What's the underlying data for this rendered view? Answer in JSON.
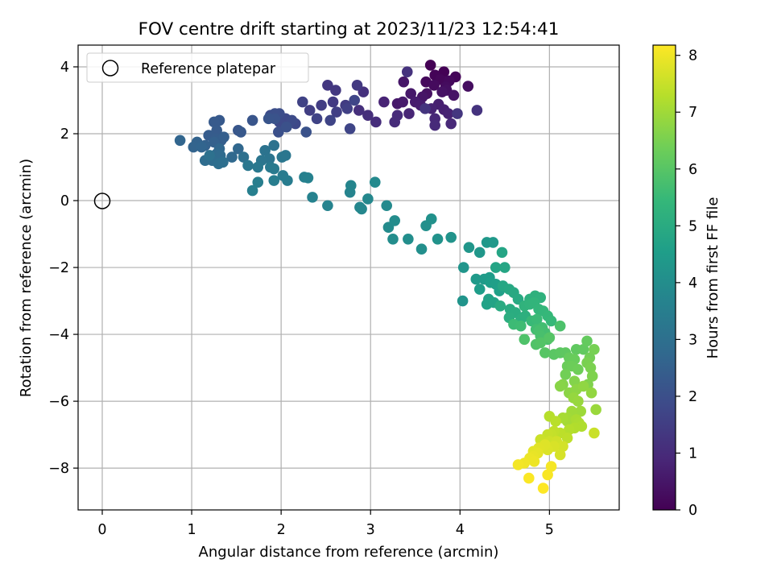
{
  "chart_data": {
    "type": "scatter",
    "title": "FOV centre drift starting at 2023/11/23 12:54:41",
    "xlabel": "Angular distance from reference (arcmin)",
    "ylabel": "Rotation from reference (arcmin)",
    "xlim": [
      -0.27,
      5.78
    ],
    "ylim": [
      -9.25,
      4.65
    ],
    "xticks": [
      "0",
      "1",
      "2",
      "3",
      "4",
      "5"
    ],
    "yticks": [
      "4",
      "2",
      "0",
      "−2",
      "−4",
      "−6",
      "−8"
    ],
    "grid": true,
    "legend": {
      "placement": "upper-left",
      "entries": [
        "Reference platepar"
      ]
    },
    "reference": {
      "x": 0,
      "y": 0
    },
    "colorbar": {
      "label": "Hours from first FF file",
      "range": [
        0,
        8.18
      ],
      "ticks": [
        "0",
        "1",
        "2",
        "3",
        "4",
        "5",
        "6",
        "7",
        "8"
      ],
      "colormap": "viridis",
      "stops": [
        "#440154",
        "#482878",
        "#3e4989",
        "#31688e",
        "#26828e",
        "#1f9e89",
        "#35b779",
        "#6ece58",
        "#b5de2b",
        "#fde725"
      ]
    },
    "series": [
      {
        "points": [
          [
            3.67,
            4.05
          ],
          [
            3.82,
            3.85
          ],
          [
            3.72,
            3.75
          ],
          [
            3.95,
            3.7
          ],
          [
            3.78,
            3.62
          ],
          [
            3.62,
            3.55
          ],
          [
            3.88,
            3.58
          ],
          [
            3.71,
            3.45
          ],
          [
            3.84,
            3.4
          ],
          [
            4.09,
            3.42
          ],
          [
            3.85,
            3.3
          ],
          [
            3.63,
            3.2
          ],
          [
            3.8,
            3.25
          ],
          [
            3.93,
            3.15
          ],
          [
            3.58,
            3.1
          ],
          [
            3.37,
            3.55
          ],
          [
            3.45,
            3.2
          ],
          [
            3.3,
            2.9
          ],
          [
            3.36,
            2.95
          ],
          [
            3.5,
            2.95
          ],
          [
            3.56,
            2.85
          ],
          [
            3.76,
            2.88
          ],
          [
            3.82,
            2.72
          ],
          [
            3.68,
            2.75
          ],
          [
            3.87,
            2.6
          ],
          [
            3.15,
            2.95
          ],
          [
            3.43,
            2.6
          ],
          [
            3.72,
            2.45
          ],
          [
            3.9,
            2.3
          ],
          [
            3.72,
            2.25
          ],
          [
            3.3,
            2.55
          ],
          [
            3.27,
            2.35
          ],
          [
            3.06,
            2.35
          ],
          [
            2.97,
            2.55
          ],
          [
            2.87,
            2.7
          ],
          [
            2.92,
            3.25
          ],
          [
            3.41,
            3.85
          ],
          [
            4.19,
            2.7
          ],
          [
            3.61,
            2.75
          ],
          [
            3.97,
            2.6
          ],
          [
            2.52,
            3.45
          ],
          [
            2.61,
            3.3
          ],
          [
            2.85,
            3.45
          ],
          [
            2.58,
            2.95
          ],
          [
            2.72,
            2.85
          ],
          [
            2.45,
            2.85
          ],
          [
            2.32,
            2.7
          ],
          [
            2.62,
            2.65
          ],
          [
            2.74,
            2.75
          ],
          [
            2.24,
            2.95
          ],
          [
            2.4,
            2.45
          ],
          [
            2.55,
            2.4
          ],
          [
            2.77,
            2.15
          ],
          [
            2.82,
            3.0
          ],
          [
            2.16,
            2.3
          ],
          [
            2.05,
            2.45
          ],
          [
            1.98,
            2.35
          ],
          [
            2.12,
            2.4
          ],
          [
            1.88,
            2.55
          ],
          [
            1.98,
            2.6
          ],
          [
            1.93,
            2.6
          ],
          [
            1.97,
            2.05
          ],
          [
            2.06,
            2.2
          ],
          [
            2.28,
            2.05
          ],
          [
            1.93,
            2.45
          ],
          [
            1.86,
            2.45
          ],
          [
            1.68,
            2.4
          ],
          [
            1.52,
            2.1
          ],
          [
            1.55,
            2.05
          ],
          [
            1.31,
            2.4
          ],
          [
            1.25,
            2.35
          ],
          [
            1.28,
            2.1
          ],
          [
            1.19,
            1.95
          ],
          [
            1.27,
            1.85
          ],
          [
            1.33,
            1.8
          ],
          [
            1.36,
            1.9
          ],
          [
            1.25,
            1.75
          ],
          [
            1.15,
            1.65
          ],
          [
            1.06,
            1.75
          ],
          [
            1.02,
            1.6
          ],
          [
            1.11,
            1.6
          ],
          [
            0.87,
            1.8
          ],
          [
            1.31,
            1.55
          ],
          [
            1.52,
            1.55
          ],
          [
            1.45,
            1.3
          ],
          [
            1.28,
            1.4
          ],
          [
            1.32,
            1.35
          ],
          [
            1.23,
            1.2
          ],
          [
            1.15,
            1.2
          ],
          [
            1.3,
            1.1
          ],
          [
            1.35,
            1.15
          ],
          [
            1.58,
            1.3
          ],
          [
            1.2,
            1.35
          ],
          [
            1.92,
            1.65
          ],
          [
            1.82,
            1.5
          ],
          [
            1.87,
            1.25
          ],
          [
            1.78,
            1.2
          ],
          [
            2.01,
            1.3
          ],
          [
            2.05,
            1.35
          ],
          [
            1.63,
            1.05
          ],
          [
            1.74,
            1.0
          ],
          [
            1.88,
            1.0
          ],
          [
            1.92,
            0.95
          ],
          [
            2.02,
            0.75
          ],
          [
            2.07,
            0.6
          ],
          [
            1.92,
            0.6
          ],
          [
            1.74,
            0.55
          ],
          [
            1.68,
            0.3
          ],
          [
            2.26,
            0.7
          ],
          [
            2.3,
            0.68
          ],
          [
            2.35,
            0.1
          ],
          [
            2.52,
            -0.15
          ],
          [
            2.77,
            0.25
          ],
          [
            2.78,
            0.45
          ],
          [
            2.88,
            -0.2
          ],
          [
            2.9,
            -0.25
          ],
          [
            2.97,
            0.05
          ],
          [
            3.05,
            0.55
          ],
          [
            3.18,
            -0.15
          ],
          [
            3.2,
            -0.8
          ],
          [
            3.27,
            -0.6
          ],
          [
            3.25,
            -1.15
          ],
          [
            3.42,
            -1.15
          ],
          [
            3.57,
            -1.45
          ],
          [
            3.62,
            -0.75
          ],
          [
            3.68,
            -0.55
          ],
          [
            3.75,
            -1.15
          ],
          [
            3.9,
            -1.1
          ],
          [
            4.03,
            -3.0
          ],
          [
            4.04,
            -2.0
          ],
          [
            4.1,
            -1.4
          ],
          [
            4.22,
            -1.55
          ],
          [
            4.3,
            -1.25
          ],
          [
            4.37,
            -1.25
          ],
          [
            4.18,
            -2.35
          ],
          [
            4.27,
            -2.35
          ],
          [
            4.33,
            -2.3
          ],
          [
            4.22,
            -2.65
          ],
          [
            4.34,
            -2.45
          ],
          [
            4.4,
            -2.5
          ],
          [
            4.44,
            -2.7
          ],
          [
            4.32,
            -2.95
          ],
          [
            4.3,
            -3.1
          ],
          [
            4.38,
            -3.05
          ],
          [
            4.4,
            -2.0
          ],
          [
            4.47,
            -1.55
          ],
          [
            4.5,
            -2.0
          ],
          [
            4.48,
            -2.55
          ],
          [
            4.55,
            -2.65
          ],
          [
            4.6,
            -2.75
          ],
          [
            4.65,
            -2.95
          ],
          [
            4.45,
            -3.15
          ],
          [
            4.56,
            -3.25
          ],
          [
            4.62,
            -3.35
          ],
          [
            4.55,
            -3.5
          ],
          [
            4.68,
            -3.55
          ],
          [
            4.73,
            -3.45
          ],
          [
            4.78,
            -2.95
          ],
          [
            4.84,
            -2.85
          ],
          [
            4.9,
            -2.9
          ],
          [
            4.72,
            -3.15
          ],
          [
            4.78,
            -3.1
          ],
          [
            4.83,
            -3.05
          ],
          [
            4.88,
            -3.25
          ],
          [
            4.93,
            -3.3
          ],
          [
            4.98,
            -3.45
          ],
          [
            5.02,
            -3.6
          ],
          [
            4.8,
            -3.6
          ],
          [
            4.86,
            -3.55
          ],
          [
            4.6,
            -3.7
          ],
          [
            4.68,
            -3.75
          ],
          [
            4.85,
            -3.85
          ],
          [
            4.92,
            -3.8
          ],
          [
            4.95,
            -3.95
          ],
          [
            4.88,
            -3.9
          ],
          [
            4.9,
            -4.05
          ],
          [
            4.98,
            -4.15
          ],
          [
            5.12,
            -3.75
          ],
          [
            4.72,
            -4.15
          ],
          [
            4.85,
            -4.3
          ],
          [
            4.9,
            -4.25
          ],
          [
            5.0,
            -4.1
          ],
          [
            4.95,
            -4.55
          ],
          [
            5.05,
            -4.6
          ],
          [
            5.12,
            -4.55
          ],
          [
            5.18,
            -4.55
          ],
          [
            5.3,
            -4.45
          ],
          [
            5.38,
            -4.45
          ],
          [
            5.42,
            -4.2
          ],
          [
            5.22,
            -4.7
          ],
          [
            5.28,
            -4.75
          ],
          [
            5.2,
            -4.95
          ],
          [
            5.25,
            -4.95
          ],
          [
            5.32,
            -5.05
          ],
          [
            5.18,
            -5.2
          ],
          [
            5.45,
            -4.7
          ],
          [
            5.5,
            -4.45
          ],
          [
            5.42,
            -4.85
          ],
          [
            5.46,
            -5.0
          ],
          [
            5.48,
            -5.25
          ],
          [
            5.43,
            -5.5
          ],
          [
            5.28,
            -5.4
          ],
          [
            5.15,
            -5.5
          ],
          [
            5.12,
            -5.55
          ],
          [
            5.22,
            -5.75
          ],
          [
            5.3,
            -5.65
          ],
          [
            5.38,
            -5.55
          ],
          [
            5.47,
            -5.75
          ],
          [
            5.27,
            -5.9
          ],
          [
            5.32,
            -6.0
          ],
          [
            5.52,
            -6.25
          ],
          [
            5.35,
            -6.3
          ],
          [
            5.25,
            -6.3
          ],
          [
            5.2,
            -6.5
          ],
          [
            5.2,
            -6.6
          ],
          [
            5.15,
            -6.5
          ],
          [
            5.3,
            -6.55
          ],
          [
            5.33,
            -6.65
          ],
          [
            5.36,
            -6.75
          ],
          [
            5.28,
            -6.8
          ],
          [
            5.22,
            -6.85
          ],
          [
            5.0,
            -6.45
          ],
          [
            5.07,
            -6.6
          ],
          [
            5.12,
            -6.95
          ],
          [
            5.2,
            -7.1
          ],
          [
            5.05,
            -6.9
          ],
          [
            5.02,
            -7.0
          ],
          [
            4.98,
            -7.0
          ],
          [
            5.5,
            -6.95
          ],
          [
            4.9,
            -7.15
          ],
          [
            5.0,
            -7.2
          ],
          [
            5.08,
            -7.2
          ],
          [
            5.15,
            -7.35
          ],
          [
            5.12,
            -7.6
          ],
          [
            5.05,
            -7.35
          ],
          [
            4.98,
            -7.45
          ],
          [
            4.95,
            -7.3
          ],
          [
            4.88,
            -7.4
          ],
          [
            4.82,
            -7.5
          ],
          [
            4.87,
            -7.55
          ],
          [
            4.82,
            -7.65
          ],
          [
            4.78,
            -7.7
          ],
          [
            4.83,
            -7.8
          ],
          [
            4.72,
            -7.85
          ],
          [
            4.65,
            -7.9
          ],
          [
            5.02,
            -7.95
          ],
          [
            4.98,
            -8.2
          ],
          [
            4.77,
            -8.3
          ],
          [
            4.93,
            -8.6
          ]
        ]
      }
    ]
  }
}
